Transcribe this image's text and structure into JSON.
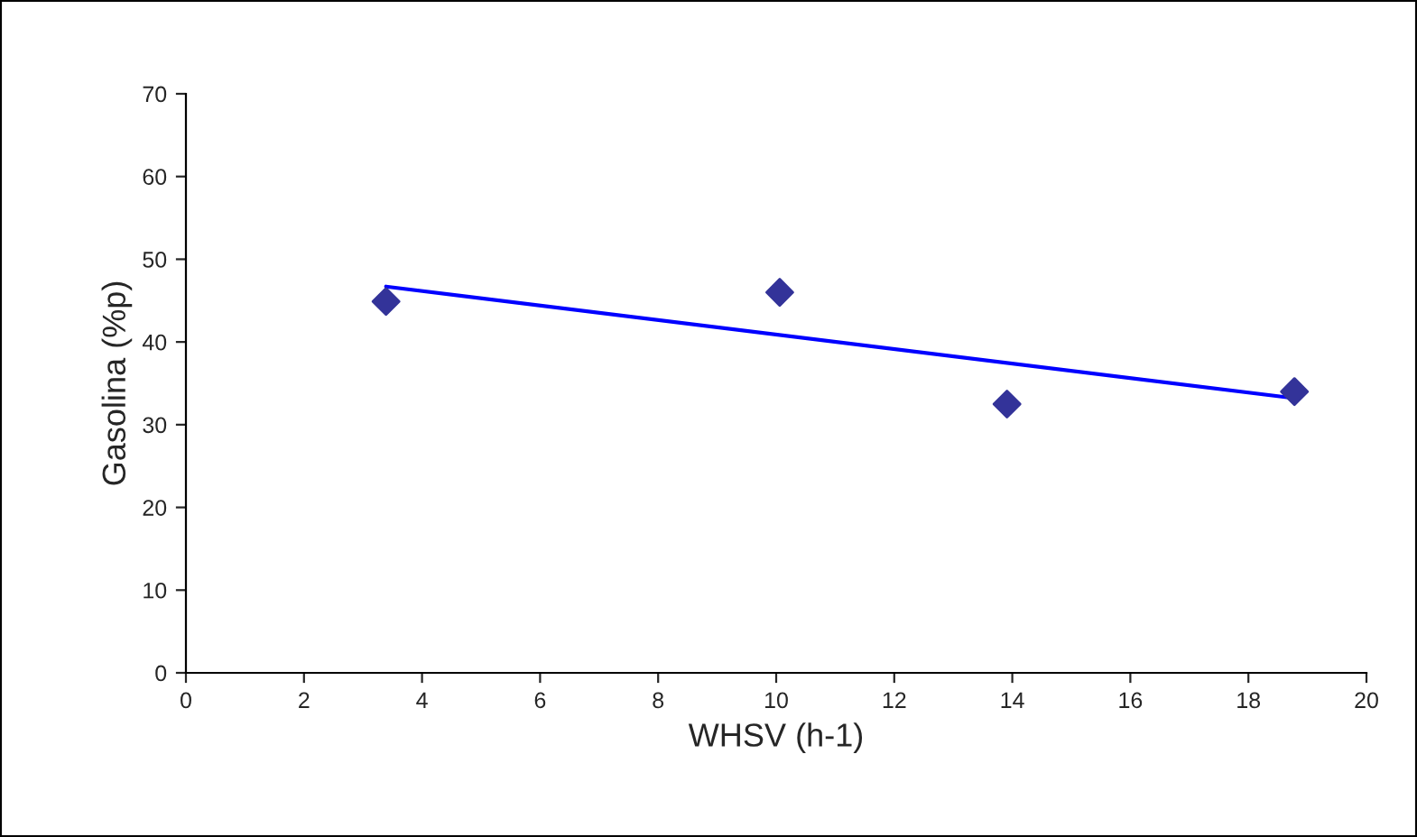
{
  "chart_data": {
    "type": "scatter",
    "xlabel": "WHSV (h-1)",
    "ylabel": "Gasolina (%p)",
    "x": [
      3.39,
      10.06,
      13.91,
      18.78
    ],
    "series": [
      {
        "color": "#333399",
        "marker": "diamond",
        "values": [
          44.9,
          46.0,
          32.5,
          34.0
        ]
      },
      {
        "type": "line",
        "color": "#0000ff",
        "marker": "none",
        "line_style": "solid",
        "x": [
          3.39,
          18.78
        ],
        "values": [
          46.7,
          33.2
        ]
      }
    ],
    "xlim": [
      0,
      20
    ],
    "xticks": [
      0,
      2,
      4,
      6,
      8,
      10,
      12,
      14,
      16,
      18,
      20
    ],
    "ylim": [
      0,
      70
    ],
    "yticks": [
      0,
      10,
      20,
      30,
      40,
      50,
      60,
      70
    ],
    "grid": false,
    "legend": false
  }
}
